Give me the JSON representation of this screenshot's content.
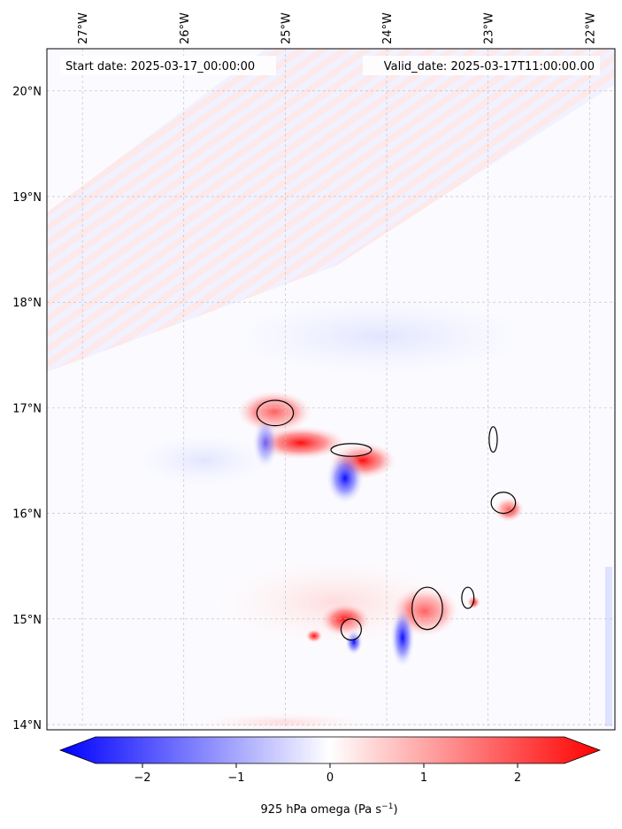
{
  "header": {
    "start_date": "Start date: 2025-03-17_00:00:00",
    "valid_date": "Valid_date: 2025-03-17T11:00:00.00"
  },
  "map": {
    "lon_ticks": [
      "27°W",
      "26°W",
      "25°W",
      "24°W",
      "23°W",
      "22°W"
    ],
    "lat_ticks": [
      "20°N",
      "19°N",
      "18°N",
      "17°N",
      "16°N",
      "15°N",
      "14°N"
    ],
    "lon_range": [
      -27.35,
      -21.75
    ],
    "lat_range": [
      13.95,
      20.4
    ],
    "gridlines": true,
    "islands": [
      {
        "name": "",
        "lon": -25.1,
        "lat": 16.95,
        "rx": 0.18,
        "ry": 0.12
      },
      {
        "name": "",
        "lon": -24.35,
        "lat": 16.6,
        "rx": 0.2,
        "ry": 0.06
      },
      {
        "name": "",
        "lon": -22.95,
        "lat": 16.7,
        "rx": 0.04,
        "ry": 0.12
      },
      {
        "name": "",
        "lon": -22.85,
        "lat": 16.1,
        "rx": 0.12,
        "ry": 0.1
      },
      {
        "name": "",
        "lon": -24.35,
        "lat": 14.9,
        "rx": 0.1,
        "ry": 0.1
      },
      {
        "name": "",
        "lon": -23.6,
        "lat": 15.1,
        "rx": 0.15,
        "ry": 0.2
      },
      {
        "name": "",
        "lon": -23.2,
        "lat": 15.2,
        "rx": 0.06,
        "ry": 0.1
      }
    ]
  },
  "colorbar": {
    "ticks": [
      "−2",
      "−1",
      "0",
      "1",
      "2"
    ],
    "tick_values": [
      -2,
      -1,
      0,
      1,
      2
    ],
    "range": [
      -2.5,
      2.5
    ],
    "label_main": "925 hPa omega (Pa s",
    "label_sup": "−1",
    "label_end": ")",
    "colors": {
      "negative": "#0000ff",
      "zero": "#ffffff",
      "positive": "#ff0000"
    }
  }
}
